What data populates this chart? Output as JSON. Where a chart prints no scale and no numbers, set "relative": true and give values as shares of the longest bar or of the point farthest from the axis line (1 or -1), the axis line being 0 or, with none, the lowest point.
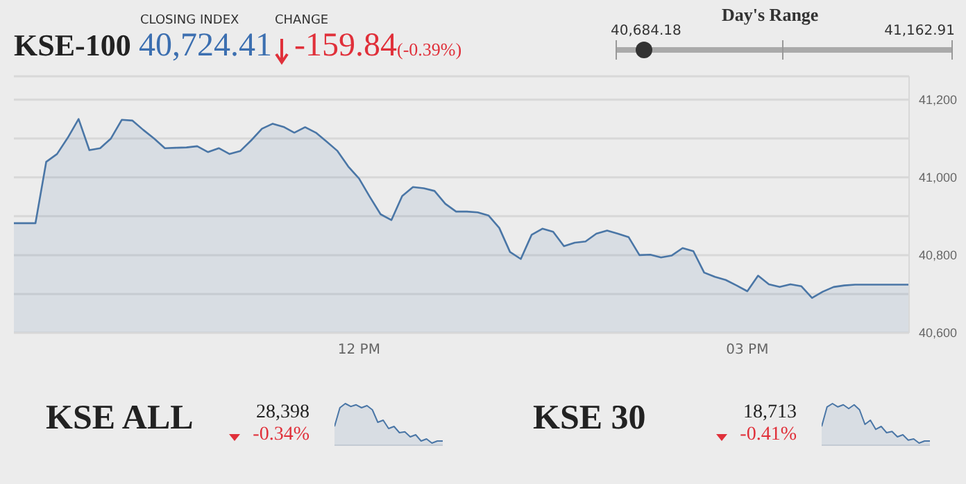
{
  "chart_data": [
    {
      "type": "area",
      "title": "KSE-100",
      "annotations": [
        "CLOSING INDEX",
        "40,724.41",
        "CHANGE",
        "-159.84",
        "(-0.39%)",
        "Day's Range",
        "40,684.18",
        "41,162.91"
      ],
      "categories": [
        null,
        null,
        null,
        null,
        null,
        null,
        null,
        null,
        null,
        null,
        null,
        null,
        null,
        null,
        null,
        null,
        null,
        null,
        null,
        null,
        null,
        null,
        null,
        null,
        null,
        null,
        null,
        null,
        null,
        null,
        null,
        null,
        "12 PM",
        null,
        null,
        null,
        null,
        null,
        null,
        null,
        null,
        null,
        null,
        null,
        null,
        null,
        null,
        null,
        null,
        null,
        null,
        null,
        null,
        null,
        null,
        null,
        null,
        null,
        null,
        null,
        null,
        null,
        null,
        null,
        null,
        null,
        null,
        null,
        "03 PM",
        null,
        null,
        null,
        null,
        null,
        null,
        null,
        null,
        null,
        null,
        null,
        null,
        null,
        null,
        null
      ],
      "series": [
        {
          "color": "#4a76a6",
          "values": [
            40882,
            40882,
            40882,
            41040,
            41060,
            41102,
            41150,
            41070,
            41075,
            41100,
            41148,
            41146,
            41122,
            41100,
            41075,
            41076,
            41077,
            41080,
            41065,
            41075,
            41060,
            41068,
            41095,
            41125,
            41138,
            41130,
            41115,
            41129,
            41115,
            41092,
            41068,
            41028,
            40997,
            40950,
            40905,
            40890,
            40952,
            40975,
            40972,
            40965,
            40932,
            40912,
            40912,
            40910,
            40902,
            40870,
            40808,
            40790,
            40852,
            40868,
            40860,
            40823,
            40832,
            40835,
            40855,
            40863,
            40855,
            40846,
            40800,
            40801,
            40794,
            40799,
            40818,
            40810,
            40755,
            40744,
            40736,
            40722,
            40707,
            40747,
            40725,
            40718,
            40725,
            40720,
            40690,
            40706,
            40718,
            40722,
            40724,
            40724,
            40724,
            40724,
            40724,
            40724
          ]
        }
      ],
      "ylim": [
        40600,
        41260
      ],
      "yticks": [
        {
          "value": 40600,
          "label": "40,600"
        },
        {
          "value": 40700,
          "label": null
        },
        {
          "value": 40800,
          "label": "40,800"
        },
        {
          "value": 40900,
          "label": null
        },
        {
          "value": 41000,
          "label": "41,000"
        },
        {
          "value": 41100,
          "label": null
        },
        {
          "value": 41200,
          "label": "41,200"
        }
      ],
      "grid": "y"
    },
    {
      "type": "area",
      "title": "KSE ALL",
      "annotations": [
        "28,398",
        "-0.34%"
      ],
      "relative": true,
      "categories": [
        null,
        null,
        null,
        null,
        null,
        null,
        null,
        null,
        null,
        null,
        null,
        null,
        null,
        null,
        null,
        null,
        null,
        null,
        null,
        null,
        null
      ],
      "series": [
        {
          "color": "#4a76a6",
          "values": [
            0.45,
            0.9,
            1,
            0.93,
            0.97,
            0.9,
            0.95,
            0.85,
            0.55,
            0.6,
            0.4,
            0.45,
            0.3,
            0.32,
            0.2,
            0.25,
            0.1,
            0.15,
            0.05,
            0.1,
            0.1
          ]
        }
      ]
    },
    {
      "type": "area",
      "title": "KSE 30",
      "annotations": [
        "18,713",
        "-0.41%"
      ],
      "relative": true,
      "categories": [
        null,
        null,
        null,
        null,
        null,
        null,
        null,
        null,
        null,
        null,
        null,
        null,
        null,
        null,
        null,
        null,
        null,
        null,
        null,
        null,
        null
      ],
      "series": [
        {
          "color": "#4a76a6",
          "values": [
            0.45,
            0.92,
            1,
            0.92,
            0.97,
            0.88,
            0.97,
            0.85,
            0.5,
            0.6,
            0.38,
            0.45,
            0.3,
            0.33,
            0.2,
            0.25,
            0.12,
            0.15,
            0.05,
            0.1,
            0.1
          ]
        }
      ]
    }
  ]
}
